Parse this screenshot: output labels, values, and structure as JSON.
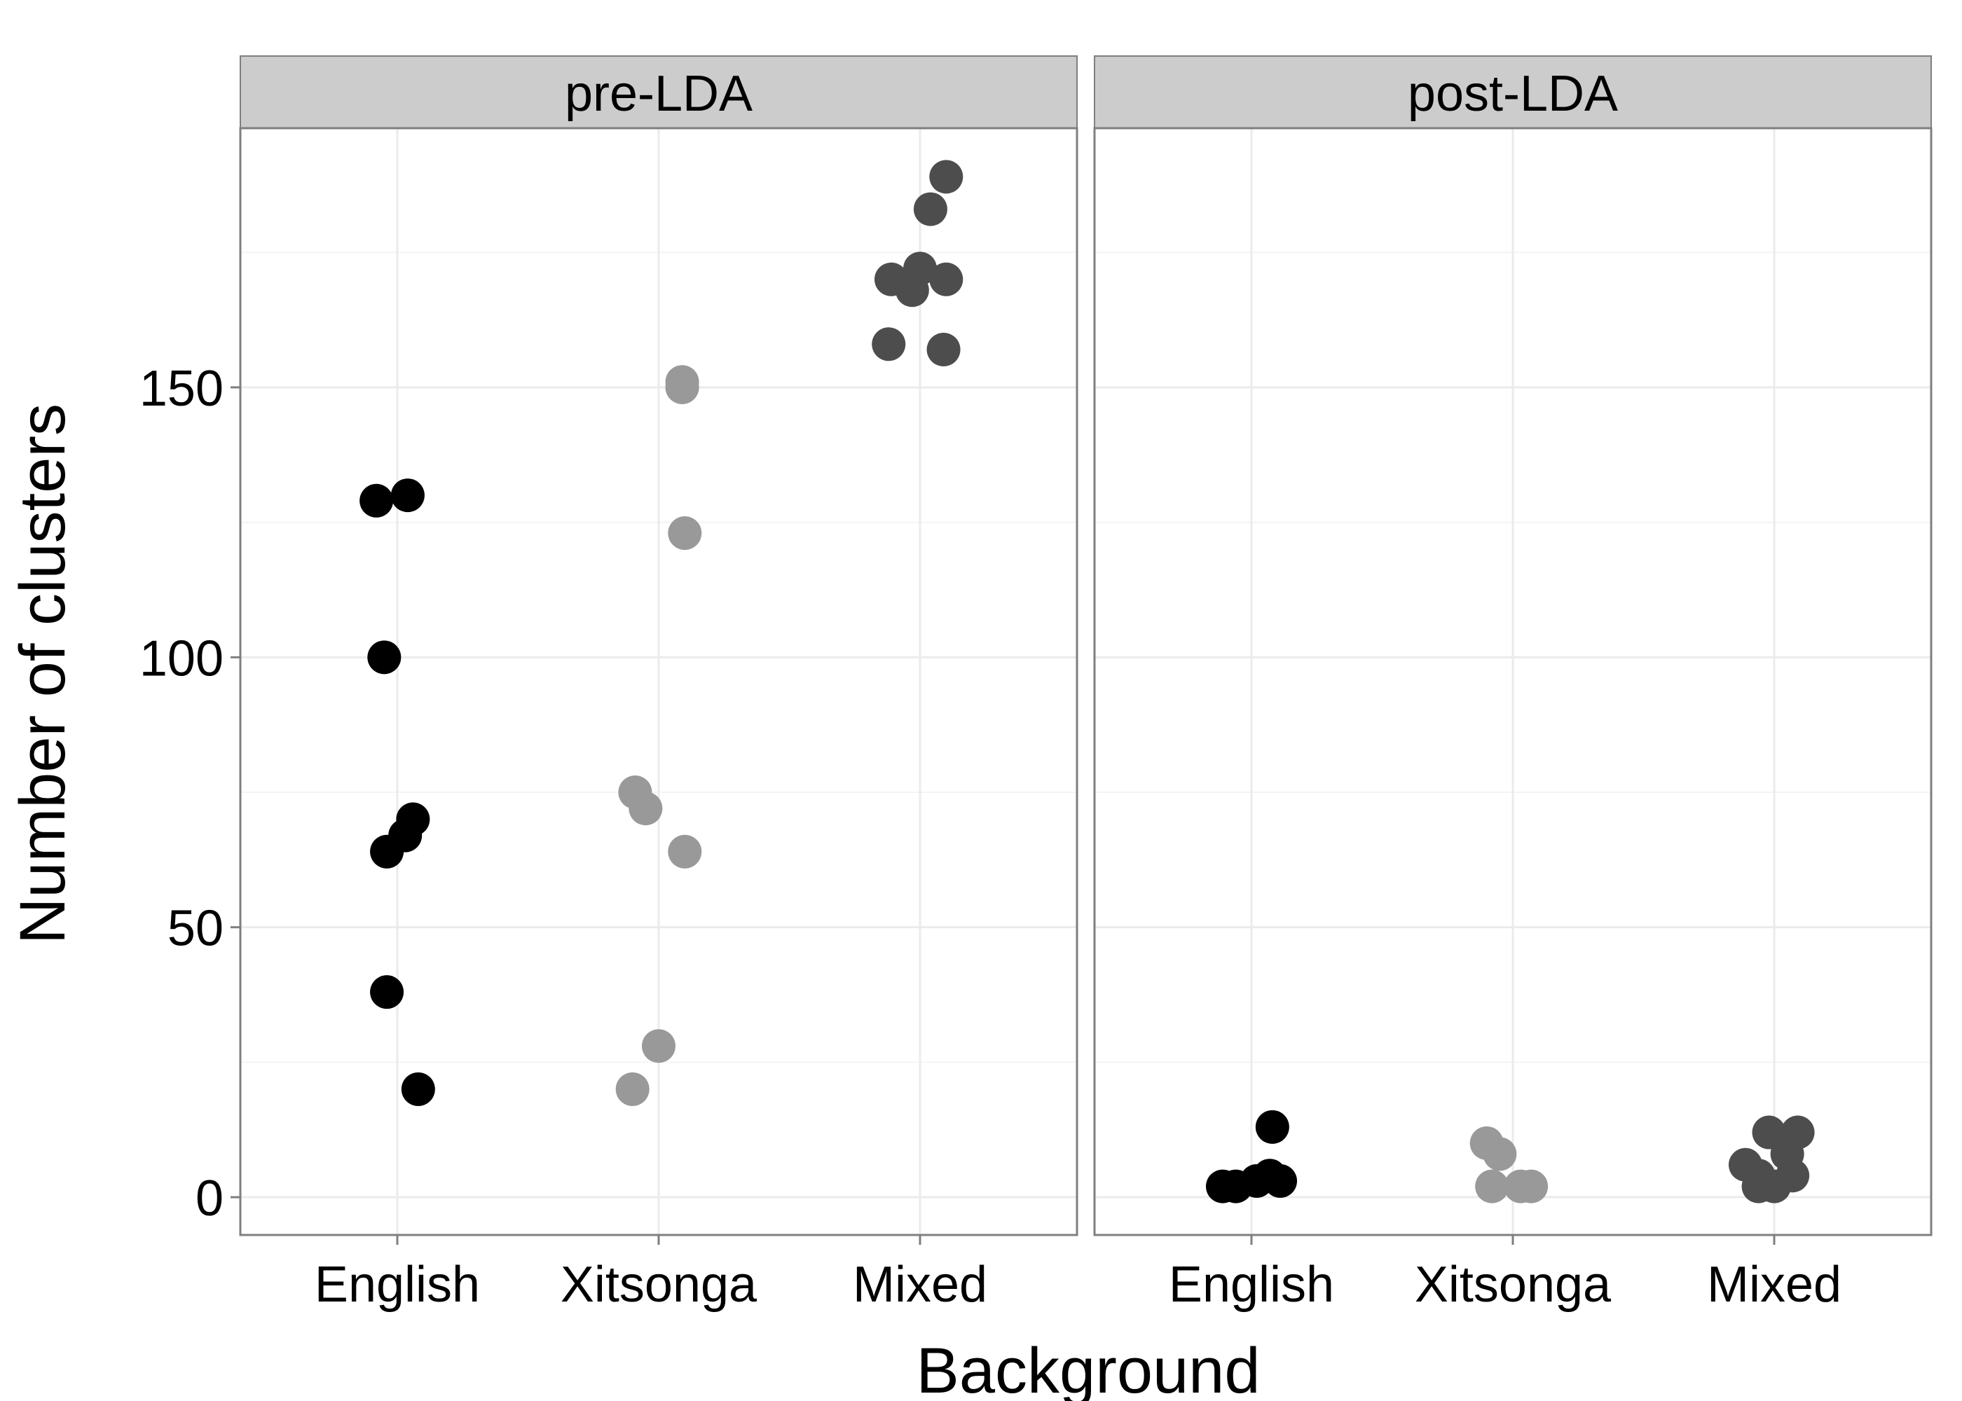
{
  "chart_data": {
    "type": "scatter",
    "xlabel": "Background",
    "ylabel": "Number of clusters",
    "categories": [
      "English",
      "Xitsonga",
      "Mixed"
    ],
    "ylim": [
      -7,
      198
    ],
    "yticks": [
      0,
      50,
      100,
      150
    ],
    "grid": true,
    "legend": "none",
    "colors": {
      "English": "#000000",
      "Xitsonga": "#999999",
      "Mixed": "#4d4d4d",
      "strip_background": "#cccccc",
      "grid_major": "#ebebeb",
      "grid_minor": "#f4f4f4",
      "panel_border": "#7f7f7f"
    },
    "panels": [
      {
        "name": "pre-LDA",
        "series": [
          {
            "category": "English",
            "points": [
              {
                "x": -0.08,
                "y": 129
              },
              {
                "x": 0.04,
                "y": 130
              },
              {
                "x": -0.05,
                "y": 100
              },
              {
                "x": 0.06,
                "y": 70
              },
              {
                "x": 0.03,
                "y": 67
              },
              {
                "x": -0.04,
                "y": 64
              },
              {
                "x": -0.04,
                "y": 38
              },
              {
                "x": 0.08,
                "y": 20
              }
            ]
          },
          {
            "category": "Xitsonga",
            "points": [
              {
                "x": 0.09,
                "y": 151
              },
              {
                "x": 0.09,
                "y": 150
              },
              {
                "x": 0.1,
                "y": 123
              },
              {
                "x": -0.09,
                "y": 75
              },
              {
                "x": -0.05,
                "y": 72
              },
              {
                "x": 0.1,
                "y": 64
              },
              {
                "x": 0.0,
                "y": 28
              },
              {
                "x": -0.1,
                "y": 20
              }
            ]
          },
          {
            "category": "Mixed",
            "points": [
              {
                "x": 0.1,
                "y": 189
              },
              {
                "x": 0.04,
                "y": 183
              },
              {
                "x": 0.0,
                "y": 172
              },
              {
                "x": -0.11,
                "y": 170
              },
              {
                "x": 0.1,
                "y": 170
              },
              {
                "x": -0.03,
                "y": 168
              },
              {
                "x": -0.12,
                "y": 158
              },
              {
                "x": 0.09,
                "y": 157
              }
            ]
          }
        ]
      },
      {
        "name": "post-LDA",
        "series": [
          {
            "category": "English",
            "points": [
              {
                "x": -0.11,
                "y": 2
              },
              {
                "x": -0.06,
                "y": 2
              },
              {
                "x": 0.02,
                "y": 3
              },
              {
                "x": 0.07,
                "y": 4
              },
              {
                "x": 0.11,
                "y": 3
              },
              {
                "x": 0.08,
                "y": 13
              }
            ]
          },
          {
            "category": "Xitsonga",
            "points": [
              {
                "x": -0.1,
                "y": 10
              },
              {
                "x": -0.05,
                "y": 8
              },
              {
                "x": -0.08,
                "y": 2
              },
              {
                "x": 0.03,
                "y": 2
              },
              {
                "x": 0.07,
                "y": 2
              }
            ]
          },
          {
            "category": "Mixed",
            "points": [
              {
                "x": -0.11,
                "y": 6
              },
              {
                "x": -0.06,
                "y": 4
              },
              {
                "x": -0.06,
                "y": 2
              },
              {
                "x": 0.0,
                "y": 2
              },
              {
                "x": -0.02,
                "y": 12
              },
              {
                "x": 0.05,
                "y": 8
              },
              {
                "x": 0.09,
                "y": 12
              },
              {
                "x": 0.07,
                "y": 4
              }
            ]
          }
        ]
      }
    ]
  }
}
